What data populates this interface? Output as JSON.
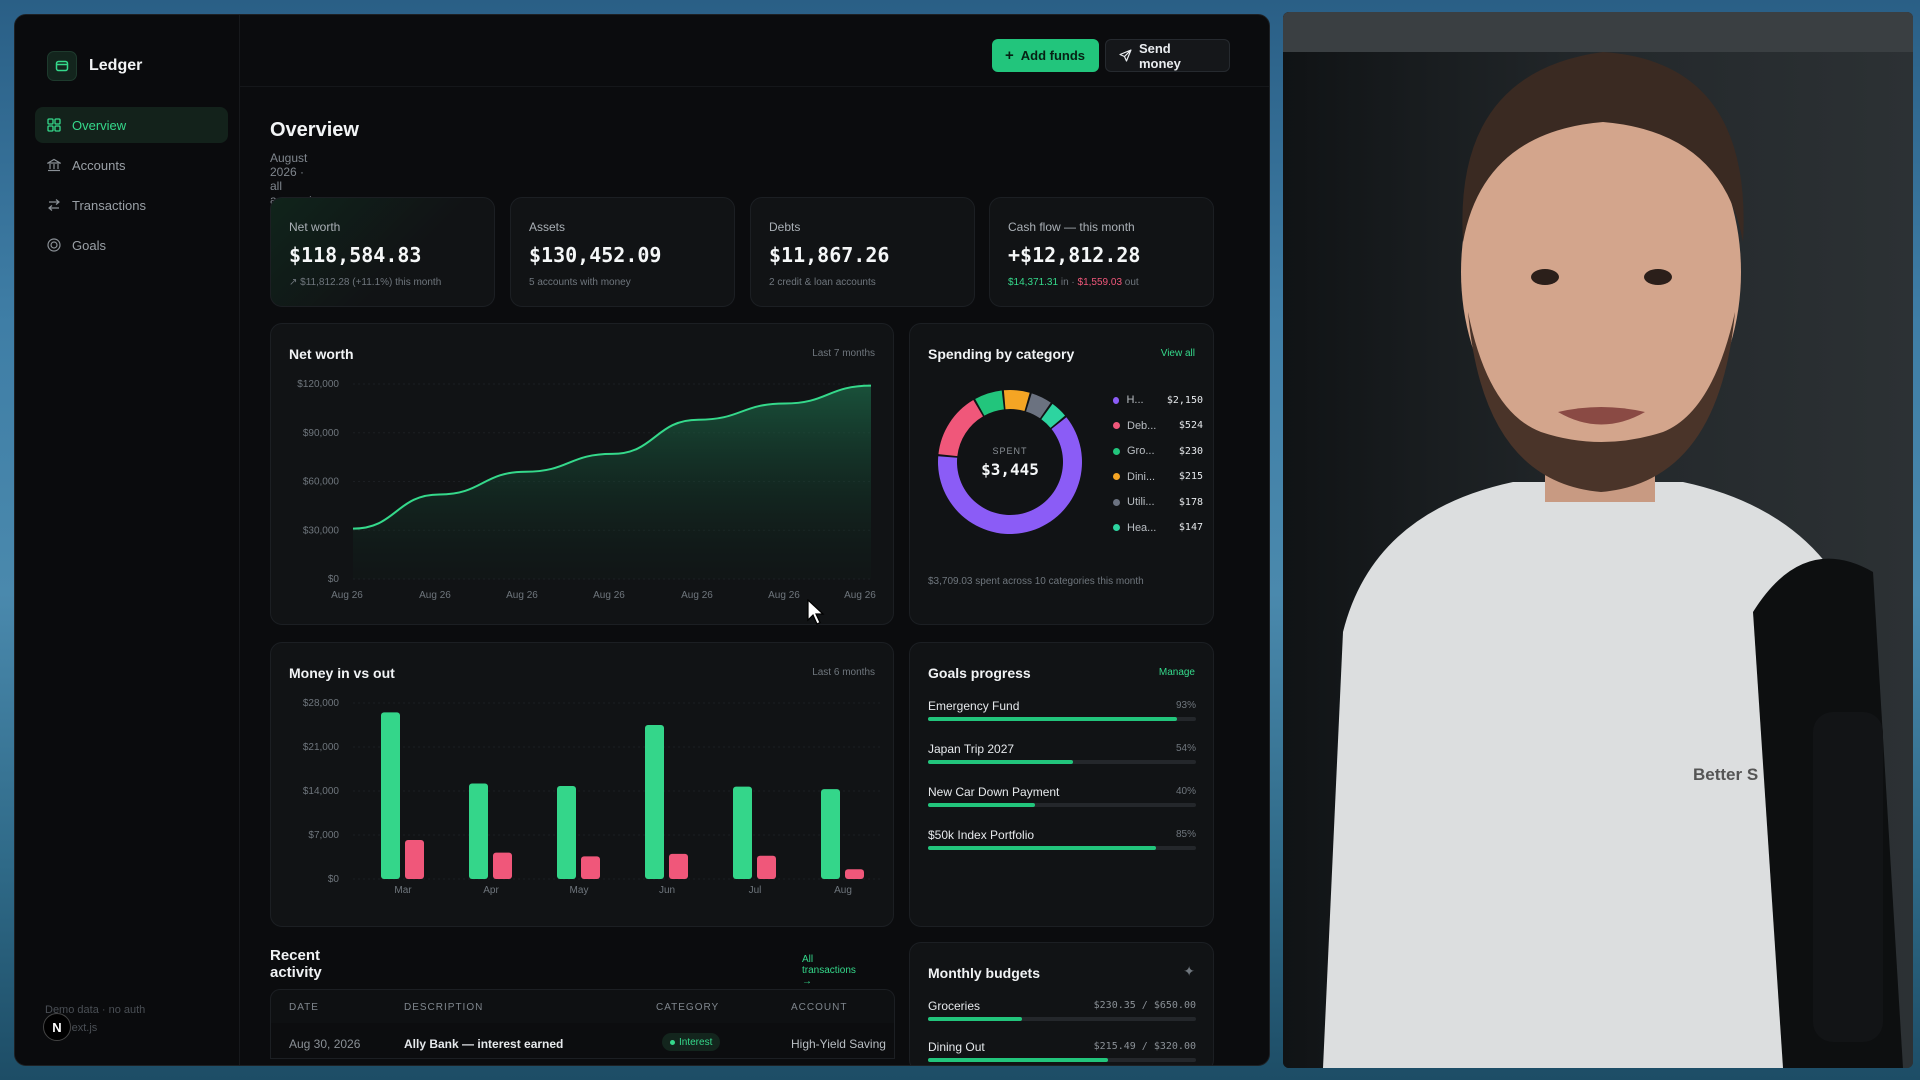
{
  "app": {
    "name": "Ledger"
  },
  "sidebar": {
    "items": [
      {
        "label": "Overview",
        "icon": "grid-icon",
        "active": true
      },
      {
        "label": "Accounts",
        "icon": "bank-icon"
      },
      {
        "label": "Transactions",
        "icon": "swap-icon"
      },
      {
        "label": "Goals",
        "icon": "target-icon"
      }
    ],
    "footer": [
      "Demo data · no auth",
      "e + Next.js"
    ],
    "next_badge": "N"
  },
  "topbar": {
    "add_funds": "Add funds",
    "send_money": "Send money"
  },
  "page": {
    "title": "Overview",
    "subtitle": "August 2026 · all accounts in one view"
  },
  "stats": [
    {
      "label": "Net worth",
      "value": "$118,584.83",
      "sub": "↗ $11,812.28 (+11.1%) this month"
    },
    {
      "label": "Assets",
      "value": "$130,452.09",
      "sub": "5 accounts with money"
    },
    {
      "label": "Debts",
      "value": "$11,867.26",
      "sub": "2 credit & loan accounts"
    },
    {
      "label": "Cash flow — this month",
      "value": "+$12,812.28",
      "sub_in": "$14,371.31",
      "sub_mid": " in · ",
      "sub_out": "$1,559.03",
      "sub_end": " out"
    }
  ],
  "networth_chart": {
    "title": "Net worth",
    "meta": "Last 7 months"
  },
  "spending": {
    "title": "Spending by category",
    "link": "View all",
    "center_label": "SPENT",
    "center_value": "$3,445",
    "footer": "$3,709.03 spent across 10 categories this month",
    "legend": [
      {
        "name": "H...",
        "value": "$2,150",
        "color": "#8b5cf6"
      },
      {
        "name": "Deb...",
        "value": "$524",
        "color": "#f0577a"
      },
      {
        "name": "Gro...",
        "value": "$230",
        "color": "#22c57c"
      },
      {
        "name": "Dini...",
        "value": "$215",
        "color": "#f5a524"
      },
      {
        "name": "Utili...",
        "value": "$178",
        "color": "#6b7280"
      },
      {
        "name": "Hea...",
        "value": "$147",
        "color": "#2dd4a0"
      }
    ]
  },
  "money_chart": {
    "title": "Money in vs out",
    "meta": "Last 6 months"
  },
  "goals": {
    "title": "Goals progress",
    "link": "Manage",
    "items": [
      {
        "name": "Emergency Fund",
        "pct_label": "93%",
        "pct": 93
      },
      {
        "name": "Japan Trip 2027",
        "pct_label": "54%",
        "pct": 54
      },
      {
        "name": "New Car Down Payment",
        "pct_label": "40%",
        "pct": 40
      },
      {
        "name": "$50k Index Portfolio",
        "pct_label": "85%",
        "pct": 85
      }
    ]
  },
  "recent": {
    "title": "Recent activity",
    "link": "All transactions →",
    "columns": [
      "DATE",
      "DESCRIPTION",
      "CATEGORY",
      "ACCOUNT"
    ],
    "rows": [
      {
        "date": "Aug 30, 2026",
        "description": "Ally Bank — interest earned",
        "category": "Interest",
        "account": "High-Yield Saving"
      }
    ]
  },
  "budgets": {
    "title": "Monthly budgets",
    "items": [
      {
        "name": "Groceries",
        "amount": "$230.35  /  $650.00",
        "pct": 35
      },
      {
        "name": "Dining Out",
        "amount": "$215.49  /  $320.00",
        "pct": 67
      }
    ]
  },
  "webcam": {
    "shirt_text": "Better S"
  },
  "chart_data": [
    {
      "type": "area",
      "title": "Net worth",
      "x": [
        "Aug 26",
        "Aug 26",
        "Aug 26",
        "Aug 26",
        "Aug 26",
        "Aug 26",
        "Aug 26"
      ],
      "yticks": [
        "$0",
        "$30,000",
        "$60,000",
        "$90,000",
        "$120,000"
      ],
      "ylim": [
        0,
        120000
      ],
      "series": [
        {
          "values": [
            31000,
            52000,
            66000,
            77000,
            98000,
            108000,
            119000
          ]
        }
      ]
    },
    {
      "type": "bar",
      "title": "Money in vs out",
      "categories": [
        "Mar",
        "Apr",
        "May",
        "Jun",
        "Jul",
        "Aug"
      ],
      "yticks": [
        "$0",
        "$7,000",
        "$14,000",
        "$21,000",
        "$28,000"
      ],
      "ylim": [
        0,
        28000
      ],
      "series": [
        {
          "values": [
            26500,
            15200,
            14800,
            24500,
            14700,
            14300
          ],
          "color": "#34d68a"
        },
        {
          "values": [
            6200,
            4200,
            3600,
            4000,
            3700,
            1559
          ],
          "color": "#f0577a"
        }
      ]
    },
    {
      "type": "pie",
      "title": "Spending by category",
      "categories": [
        "H...",
        "Deb...",
        "Gro...",
        "Dini...",
        "Utili...",
        "Hea..."
      ],
      "values": [
        2150,
        524,
        230,
        215,
        178,
        147
      ]
    }
  ]
}
